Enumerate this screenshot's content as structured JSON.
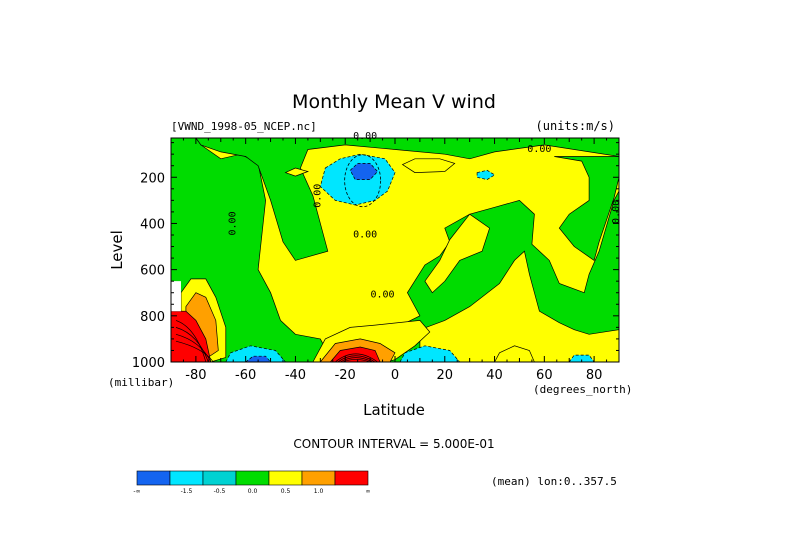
{
  "chart_data": {
    "type": "heatmap",
    "title": "Monthly Mean V wind",
    "dataset_label": "[VWND_1998-05_NCEP.nc]",
    "units_label": "(units:m/s)",
    "xlabel": "Latitude",
    "x_units": "(degrees_north)",
    "ylabel": "Level",
    "y_units": "(millibar)",
    "xlim": [
      -90,
      90
    ],
    "ylim": [
      1000,
      30
    ],
    "y_reversed": true,
    "x_ticks": [
      -80,
      -60,
      -40,
      -20,
      0,
      20,
      40,
      60,
      80
    ],
    "x_tick_labels": [
      "-80",
      "-60",
      "-40",
      "-20",
      "0",
      "20",
      "40",
      "60",
      "80"
    ],
    "y_ticks": [
      200,
      400,
      600,
      800,
      1000
    ],
    "y_tick_labels": [
      "200",
      "400",
      "600",
      "800",
      "1000"
    ],
    "contour_interval_text": "CONTOUR INTERVAL = 5.000E-01",
    "footer_text": "(mean) lon:0..357.5",
    "contour_labels": [
      {
        "text": "0.00",
        "lat": -64,
        "level": 400,
        "vertical": true
      },
      {
        "text": "0.00",
        "lat": -30,
        "level": 280,
        "vertical": true
      },
      {
        "text": "0.00",
        "lat": -12,
        "level": 35
      },
      {
        "text": "0.00",
        "lat": -12,
        "level": 460
      },
      {
        "text": "0.00",
        "lat": -5,
        "level": 720
      },
      {
        "text": "0.00",
        "lat": 58,
        "level": 90
      },
      {
        "text": "0.00",
        "lat": 90,
        "level": 350,
        "vertical": true
      }
    ],
    "colorbar": {
      "colors": [
        "#1464f0",
        "#00e6ff",
        "#00d2d2",
        "#00dc00",
        "#ffff00",
        "#ffa000",
        "#ff0000"
      ],
      "labels": [
        "-∞",
        "-1.5",
        "-0.5",
        "0.0",
        "0.5",
        "1.0",
        "∞"
      ]
    },
    "regions": [
      {
        "band": -1,
        "level": 600,
        "lat": 60,
        "note": "background"
      },
      {
        "band": 0,
        "lat": -65,
        "level": 400
      },
      {
        "band": 0,
        "lat": -25,
        "level": 120
      },
      {
        "band": 0,
        "lat": 40,
        "level": 500
      },
      {
        "band": 0,
        "lat": 75,
        "level": 500
      },
      {
        "band": -2,
        "lat": -13,
        "level": 220
      },
      {
        "band": -3,
        "lat": -14,
        "level": 170
      },
      {
        "band": -2,
        "lat": -56,
        "level": 980
      },
      {
        "band": -2,
        "lat": 15,
        "level": 990
      },
      {
        "band": 1,
        "lat": -78,
        "level": 800
      },
      {
        "band": 2,
        "lat": -80,
        "level": 880
      },
      {
        "band": 1,
        "lat": -12,
        "level": 930
      },
      {
        "band": 2,
        "lat": -14,
        "level": 960
      },
      {
        "band": 1,
        "lat": 12,
        "level": 150
      },
      {
        "band": 1,
        "lat": 48,
        "level": 970
      }
    ]
  }
}
